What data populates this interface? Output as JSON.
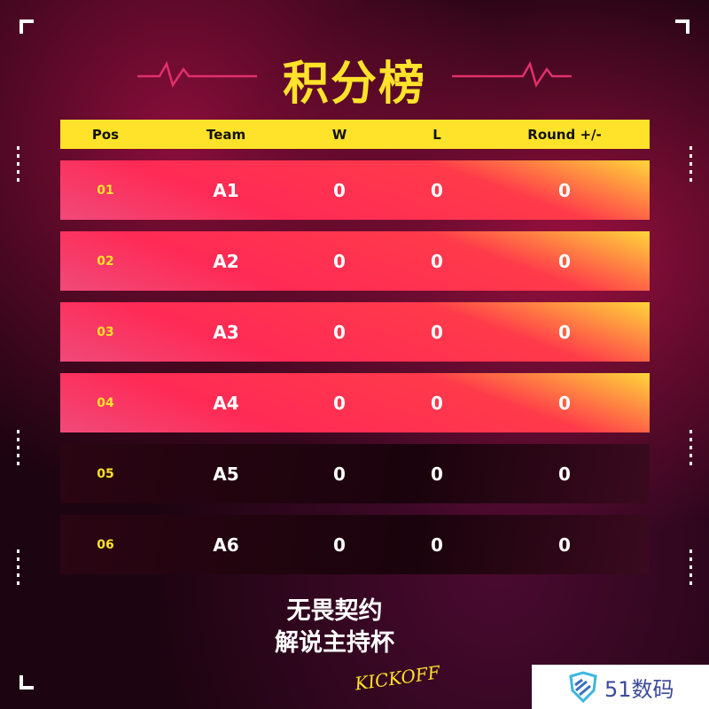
{
  "title": "积分榜",
  "headers": {
    "pos": "Pos",
    "team": "Team",
    "w": "W",
    "l": "L",
    "round": "Round +/-"
  },
  "rows": [
    {
      "pos": "01",
      "team": "A1",
      "w": "0",
      "l": "0",
      "round": "0"
    },
    {
      "pos": "02",
      "team": "A2",
      "w": "0",
      "l": "0",
      "round": "0"
    },
    {
      "pos": "03",
      "team": "A3",
      "w": "0",
      "l": "0",
      "round": "0"
    },
    {
      "pos": "04",
      "team": "A4",
      "w": "0",
      "l": "0",
      "round": "0"
    },
    {
      "pos": "05",
      "team": "A5",
      "w": "0",
      "l": "0",
      "round": "0"
    },
    {
      "pos": "06",
      "team": "A6",
      "w": "0",
      "l": "0",
      "round": "0"
    }
  ],
  "logo": {
    "line1": "无畏契约",
    "line2": "解说主持杯",
    "script": "KICKOFF"
  },
  "watermark": "51数码",
  "colors": {
    "accent": "#ffe22a",
    "hot_row": "#ff2a55",
    "dark_row": "#1a030c"
  }
}
